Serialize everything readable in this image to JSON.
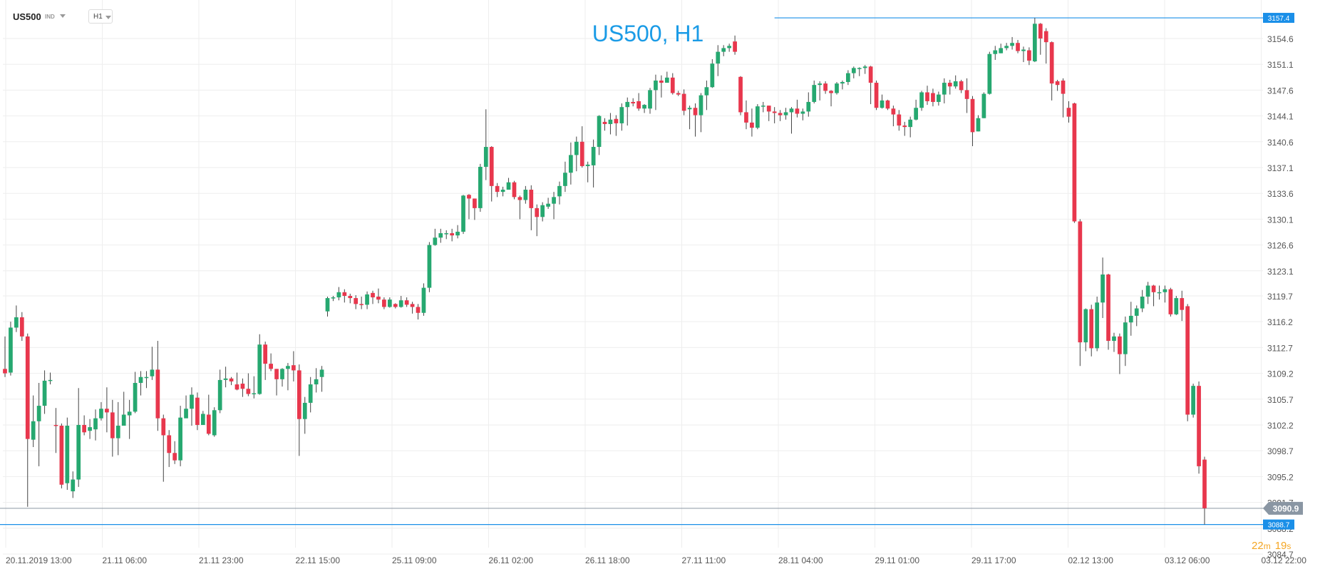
{
  "toolbar": {
    "symbol": "US500",
    "asset_class": "IND",
    "timeframe": "H1"
  },
  "chart_data": {
    "type": "candlestick",
    "title": "US500, H1",
    "y_ticks": [
      "3154.6",
      "3151.1",
      "3147.6",
      "3144.1",
      "3140.6",
      "3137.1",
      "3133.6",
      "3130.1",
      "3126.6",
      "3123.1",
      "3119.7",
      "3116.2",
      "3112.7",
      "3109.2",
      "3105.7",
      "3102.2",
      "3098.7",
      "3095.2",
      "3091.7",
      "3088.2",
      "3084.7"
    ],
    "y_tick_values": [
      3154.6,
      3151.1,
      3147.6,
      3144.1,
      3140.6,
      3137.1,
      3133.6,
      3130.1,
      3126.6,
      3123.1,
      3119.7,
      3116.2,
      3112.7,
      3109.2,
      3105.7,
      3102.2,
      3098.7,
      3095.2,
      3091.7,
      3088.2,
      3084.7
    ],
    "x_ticks": [
      "20.11.2019   13:00",
      "21.11  06:00",
      "21.11  23:00",
      "22.11  15:00",
      "25.11  09:00",
      "26.11  02:00",
      "26.11  18:00",
      "27.11  11:00",
      "28.11  04:00",
      "29.11  01:00",
      "29.11  17:00",
      "02.12  13:00",
      "03.12  06:00",
      "03.12  22:00"
    ],
    "high_marker": {
      "label": "3157.4",
      "value": 3157.4
    },
    "low_marker": {
      "label": "3088.7",
      "value": 3088.7
    },
    "current_price": {
      "label": "3090.9",
      "value": 3090.9
    },
    "countdown": {
      "minutes": "22",
      "m_unit": "m",
      "seconds": "19",
      "s_unit": "s"
    },
    "colors": {
      "up": "#26a870",
      "down": "#e8374d",
      "title": "#1a9be6",
      "marker": "#1a8fe8",
      "current_price": "#8a96a3",
      "countdown": "#f5a623",
      "grid": "#eeeeee",
      "axis_text": "#555555"
    },
    "candles": [
      [
        3109.8,
        3109.2,
        3114.2,
        3108.7
      ],
      [
        3109.3,
        3115.4,
        3116.2,
        3108.9
      ],
      [
        3115.4,
        3116.8,
        3118.4,
        3114.8
      ],
      [
        3116.8,
        3114.2,
        3117.5,
        3113.6
      ],
      [
        3114.2,
        3100.3,
        3114.6,
        3091.1
      ],
      [
        3100.2,
        3102.7,
        3106.2,
        3099.2
      ],
      [
        3102.7,
        3104.8,
        3107.9,
        3096.6
      ],
      [
        3104.8,
        3108.2,
        3109.6,
        3103.7
      ],
      [
        3108.2,
        3108.3,
        3109.3,
        3107.7
      ],
      [
        3102.2,
        3102.1,
        3104.5,
        3098.4
      ],
      [
        3102.1,
        3094.1,
        3102.4,
        3093.6
      ],
      [
        3094.3,
        3102.1,
        3103.2,
        3093.4
      ],
      [
        3093.2,
        3094.8,
        3095.9,
        3092.3
      ],
      [
        3094.8,
        3102.2,
        3107.2,
        3093.8
      ],
      [
        3102.2,
        3101.2,
        3103.5,
        3100.8
      ],
      [
        3101.4,
        3101.9,
        3103.0,
        3100.3
      ],
      [
        3101.6,
        3103.1,
        3104.3,
        3100.1
      ],
      [
        3103.1,
        3104.4,
        3105.3,
        3102.8
      ],
      [
        3104.4,
        3103.9,
        3107.3,
        3101.2
      ],
      [
        3103.9,
        3100.4,
        3105.6,
        3097.9
      ],
      [
        3100.4,
        3102.1,
        3105.3,
        3098.1
      ],
      [
        3102.1,
        3103.6,
        3106.7,
        3102.1
      ],
      [
        3103.5,
        3104.0,
        3105.6,
        3100.3
      ],
      [
        3104.0,
        3107.9,
        3109.4,
        3103.8
      ],
      [
        3107.9,
        3108.7,
        3109.5,
        3106.2
      ],
      [
        3108.7,
        3108.7,
        3109.5,
        3107.2
      ],
      [
        3108.8,
        3109.7,
        3112.8,
        3108.3
      ],
      [
        3109.7,
        3103.1,
        3113.6,
        3101.4
      ],
      [
        3103.1,
        3100.8,
        3103.6,
        3094.5
      ],
      [
        3100.8,
        3098.4,
        3101.5,
        3096.5
      ],
      [
        3098.4,
        3097.4,
        3100.0,
        3096.9
      ],
      [
        3097.4,
        3103.2,
        3104.8,
        3096.6
      ],
      [
        3103.1,
        3104.4,
        3106.2,
        3103.6
      ],
      [
        3104.4,
        3106.3,
        3107.3,
        3102.1
      ],
      [
        3105.9,
        3102.2,
        3106.6,
        3101.5
      ],
      [
        3102.2,
        3103.7,
        3104.1,
        3102.9
      ],
      [
        3103.6,
        3101.0,
        3106.3,
        3100.8
      ],
      [
        3100.8,
        3104.2,
        3104.6,
        3100.6
      ],
      [
        3104.2,
        3108.3,
        3109.7,
        3103.8
      ],
      [
        3108.3,
        3108.5,
        3110.1,
        3107.3
      ],
      [
        3108.5,
        3108.1,
        3108.7,
        3107.6
      ],
      [
        3107.7,
        3107.0,
        3109.3,
        3106.9
      ],
      [
        3107.8,
        3107.1,
        3108.5,
        3106.0
      ],
      [
        3107.1,
        3106.4,
        3109.2,
        3106.1
      ],
      [
        3106.4,
        3106.5,
        3108.8,
        3105.8
      ],
      [
        3106.4,
        3113.1,
        3114.5,
        3106.3
      ],
      [
        3113.1,
        3110.5,
        3113.5,
        3108.3
      ],
      [
        3110.5,
        3109.8,
        3111.9,
        3109.5
      ],
      [
        3109.8,
        3108.4,
        3109.8,
        3106.2
      ],
      [
        3108.4,
        3109.8,
        3109.9,
        3107.4
      ],
      [
        3109.8,
        3110.2,
        3110.6,
        3106.9
      ],
      [
        3110.3,
        3109.6,
        3112.2,
        3108.1
      ],
      [
        3109.6,
        3103.0,
        3110.4,
        3098.0
      ],
      [
        3103.0,
        3105.2,
        3106.0,
        3101.0
      ],
      [
        3105.2,
        3107.7,
        3108.7,
        3103.9
      ],
      [
        3107.7,
        3108.4,
        3109.9,
        3106.6
      ],
      [
        3108.7,
        3109.7,
        3110.2,
        3106.7
      ],
      [
        3117.6,
        3119.4,
        3119.6,
        3116.9
      ],
      [
        3119.4,
        3119.5,
        3119.7,
        3119.0
      ],
      [
        3119.5,
        3120.2,
        3120.9,
        3119.1
      ],
      [
        3120.2,
        3119.7,
        3120.6,
        3118.8
      ],
      [
        3119.7,
        3119.4,
        3120.0,
        3118.7
      ],
      [
        3119.4,
        3118.6,
        3119.8,
        3117.9
      ],
      [
        3118.6,
        3118.5,
        3119.6,
        3117.9
      ],
      [
        3118.5,
        3119.9,
        3120.3,
        3117.9
      ],
      [
        3120.1,
        3119.5,
        3120.4,
        3118.6
      ],
      [
        3119.6,
        3119.2,
        3120.7,
        3118.7
      ],
      [
        3119.2,
        3118.2,
        3119.5,
        3117.9
      ],
      [
        3118.2,
        3119.2,
        3119.5,
        3118.1
      ],
      [
        3118.6,
        3118.2,
        3118.7,
        3118.0
      ],
      [
        3118.2,
        3119.1,
        3119.7,
        3118.1
      ],
      [
        3119.1,
        3118.5,
        3119.5,
        3118.2
      ],
      [
        3118.6,
        3118.2,
        3118.9,
        3117.3
      ],
      [
        3118.2,
        3117.4,
        3118.6,
        3116.5
      ],
      [
        3117.4,
        3120.8,
        3121.4,
        3117.0
      ],
      [
        3120.8,
        3126.6,
        3127.0,
        3120.2
      ],
      [
        3126.6,
        3127.6,
        3128.8,
        3126.5
      ],
      [
        3127.6,
        3128.2,
        3128.8,
        3126.9
      ],
      [
        3128.2,
        3128.2,
        3128.6,
        3127.4
      ],
      [
        3128.2,
        3127.9,
        3128.8,
        3127.1
      ],
      [
        3127.9,
        3128.4,
        3129.3,
        3127.5
      ],
      [
        3128.4,
        3133.3,
        3133.4,
        3128.1
      ],
      [
        3133.4,
        3132.9,
        3133.5,
        3130.1
      ],
      [
        3132.9,
        3131.6,
        3132.9,
        3130.0
      ],
      [
        3131.6,
        3137.2,
        3137.6,
        3131.1
      ],
      [
        3137.2,
        3139.9,
        3145.0,
        3135.4
      ],
      [
        3139.9,
        3134.6,
        3140.0,
        3132.5
      ],
      [
        3134.6,
        3133.8,
        3135.0,
        3133.1
      ],
      [
        3133.8,
        3134.1,
        3134.5,
        3133.2
      ],
      [
        3134.1,
        3135.1,
        3135.7,
        3134.1
      ],
      [
        3135.1,
        3133.1,
        3135.3,
        3132.8
      ],
      [
        3133.1,
        3132.7,
        3133.3,
        3130.1
      ],
      [
        3132.7,
        3134.1,
        3134.6,
        3132.2
      ],
      [
        3134.1,
        3131.6,
        3134.7,
        3128.6
      ],
      [
        3131.6,
        3130.4,
        3132.1,
        3127.8
      ],
      [
        3130.4,
        3132.0,
        3132.4,
        3129.8
      ],
      [
        3131.8,
        3132.2,
        3133.0,
        3131.5
      ],
      [
        3132.2,
        3133.1,
        3133.8,
        3130.1
      ],
      [
        3133.2,
        3134.6,
        3135.2,
        3132.1
      ],
      [
        3134.6,
        3136.4,
        3137.9,
        3133.8
      ],
      [
        3136.4,
        3138.8,
        3140.5,
        3134.8
      ],
      [
        3138.8,
        3140.6,
        3141.3,
        3136.6
      ],
      [
        3140.6,
        3137.3,
        3142.7,
        3137.1
      ],
      [
        3137.3,
        3137.5,
        3137.9,
        3135.1
      ],
      [
        3137.4,
        3139.9,
        3140.9,
        3134.4
      ],
      [
        3139.9,
        3144.1,
        3144.2,
        3138.8
      ],
      [
        3143.3,
        3143.0,
        3143.8,
        3142.1
      ],
      [
        3143.0,
        3143.6,
        3144.5,
        3141.6
      ],
      [
        3143.7,
        3143.1,
        3144.2,
        3141.4
      ],
      [
        3143.1,
        3145.3,
        3145.8,
        3142.1
      ],
      [
        3145.3,
        3146.0,
        3146.6,
        3142.8
      ],
      [
        3146.0,
        3145.8,
        3146.5,
        3145.4
      ],
      [
        3146.1,
        3145.1,
        3147.2,
        3144.8
      ],
      [
        3145.1,
        3145.6,
        3145.7,
        3144.5
      ],
      [
        3145.1,
        3147.6,
        3147.9,
        3144.4
      ],
      [
        3147.6,
        3148.9,
        3149.7,
        3144.9
      ],
      [
        3148.9,
        3148.6,
        3149.6,
        3146.6
      ],
      [
        3148.6,
        3149.3,
        3150.1,
        3148.6
      ],
      [
        3149.3,
        3147.2,
        3149.9,
        3147.0
      ],
      [
        3147.2,
        3147.0,
        3147.5,
        3146.8
      ],
      [
        3147.1,
        3144.8,
        3147.7,
        3144.2
      ],
      [
        3145.0,
        3145.2,
        3145.5,
        3142.3
      ],
      [
        3145.2,
        3144.2,
        3145.8,
        3141.3
      ],
      [
        3144.2,
        3146.9,
        3147.2,
        3141.9
      ],
      [
        3146.9,
        3148.0,
        3148.9,
        3144.9
      ],
      [
        3148.0,
        3151.2,
        3151.8,
        3147.9
      ],
      [
        3151.2,
        3152.8,
        3153.7,
        3149.5
      ],
      [
        3152.8,
        3153.3,
        3153.7,
        3152.2
      ],
      [
        3153.3,
        3153.6,
        3153.9,
        3152.8
      ],
      [
        3154.2,
        3152.8,
        3155.0,
        3152.4
      ],
      [
        3149.4,
        3144.6,
        3149.5,
        3144.2
      ],
      [
        3144.6,
        3143.2,
        3146.2,
        3142.3
      ],
      [
        3143.2,
        3142.5,
        3145.1,
        3141.3
      ],
      [
        3142.5,
        3145.4,
        3145.7,
        3142.3
      ],
      [
        3145.4,
        3145.5,
        3146.0,
        3144.6
      ],
      [
        3145.5,
        3144.7,
        3145.5,
        3143.4
      ],
      [
        3144.7,
        3144.5,
        3145.3,
        3143.1
      ],
      [
        3144.5,
        3144.2,
        3144.9,
        3143.4
      ],
      [
        3144.2,
        3144.6,
        3145.2,
        3143.6
      ],
      [
        3144.6,
        3145.1,
        3145.3,
        3141.7
      ],
      [
        3145.1,
        3144.4,
        3146.3,
        3143.9
      ],
      [
        3144.4,
        3144.7,
        3145.1,
        3143.5
      ],
      [
        3144.7,
        3146.0,
        3147.3,
        3144.0
      ],
      [
        3146.0,
        3148.3,
        3148.9,
        3145.8
      ],
      [
        3148.3,
        3148.5,
        3148.8,
        3146.2
      ],
      [
        3148.5,
        3147.5,
        3148.8,
        3147.1
      ],
      [
        3147.5,
        3147.2,
        3147.6,
        3145.4
      ],
      [
        3147.2,
        3148.5,
        3148.7,
        3147.0
      ],
      [
        3148.5,
        3148.7,
        3148.9,
        3147.7
      ],
      [
        3148.7,
        3149.9,
        3150.3,
        3148.3
      ],
      [
        3149.9,
        3150.6,
        3150.8,
        3149.2
      ],
      [
        3150.6,
        3150.6,
        3150.7,
        3149.5
      ],
      [
        3150.6,
        3150.8,
        3151.0,
        3149.8
      ],
      [
        3150.8,
        3148.6,
        3150.9,
        3145.7
      ],
      [
        3148.6,
        3145.2,
        3148.9,
        3144.9
      ],
      [
        3145.2,
        3146.2,
        3147.0,
        3145.1
      ],
      [
        3146.2,
        3145.1,
        3146.3,
        3144.9
      ],
      [
        3145.1,
        3144.3,
        3145.5,
        3142.7
      ],
      [
        3144.3,
        3142.8,
        3144.9,
        3142.1
      ],
      [
        3142.8,
        3142.6,
        3143.3,
        3141.4
      ],
      [
        3142.6,
        3143.6,
        3144.0,
        3141.2
      ],
      [
        3143.6,
        3145.2,
        3146.3,
        3143.5
      ],
      [
        3145.2,
        3147.3,
        3147.5,
        3144.8
      ],
      [
        3147.3,
        3146.1,
        3148.2,
        3145.6
      ],
      [
        3147.2,
        3146.0,
        3147.8,
        3145.4
      ],
      [
        3146.0,
        3147.0,
        3147.4,
        3145.5
      ],
      [
        3147.0,
        3148.6,
        3149.2,
        3145.8
      ],
      [
        3148.6,
        3148.1,
        3149.0,
        3147.0
      ],
      [
        3148.1,
        3148.8,
        3149.6,
        3147.8
      ],
      [
        3148.8,
        3147.6,
        3149.0,
        3147.2
      ],
      [
        3147.6,
        3146.4,
        3149.2,
        3144.5
      ],
      [
        3146.4,
        3141.9,
        3146.8,
        3140.0
      ],
      [
        3142.0,
        3143.8,
        3144.2,
        3142.0
      ],
      [
        3143.8,
        3147.1,
        3147.3,
        3143.8
      ],
      [
        3147.1,
        3152.5,
        3152.8,
        3147.0
      ],
      [
        3152.5,
        3153.0,
        3153.6,
        3151.7
      ],
      [
        3152.6,
        3153.3,
        3153.9,
        3152.6
      ],
      [
        3153.3,
        3153.6,
        3154.0,
        3153.0
      ],
      [
        3153.6,
        3154.0,
        3154.8,
        3153.1
      ],
      [
        3154.0,
        3152.9,
        3154.4,
        3152.6
      ],
      [
        3152.9,
        3153.1,
        3153.5,
        3151.4
      ],
      [
        3153.0,
        3151.6,
        3153.4,
        3151.0
      ],
      [
        3151.5,
        3156.6,
        3157.4,
        3151.4
      ],
      [
        3156.6,
        3154.6,
        3156.7,
        3152.4
      ],
      [
        3155.6,
        3154.1,
        3156.0,
        3151.2
      ],
      [
        3154.1,
        3148.5,
        3154.2,
        3146.2
      ],
      [
        3148.8,
        3148.3,
        3149.0,
        3147.5
      ],
      [
        3148.9,
        3147.1,
        3149.2,
        3143.9
      ],
      [
        3145.2,
        3144.0,
        3146.1,
        3143.2
      ],
      [
        3145.8,
        3129.8,
        3145.9,
        3129.6
      ],
      [
        3129.8,
        3113.4,
        3130.1,
        3110.2
      ],
      [
        3113.4,
        3117.9,
        3118.0,
        3112.2
      ],
      [
        3117.9,
        3112.6,
        3118.5,
        3111.5
      ],
      [
        3112.6,
        3118.8,
        3119.6,
        3112.2
      ],
      [
        3118.8,
        3122.6,
        3124.9,
        3116.7
      ],
      [
        3122.6,
        3113.6,
        3122.7,
        3112.4
      ],
      [
        3113.6,
        3114.2,
        3114.7,
        3112.1
      ],
      [
        3114.2,
        3111.8,
        3114.6,
        3109.1
      ],
      [
        3111.8,
        3116.1,
        3116.9,
        3110.2
      ],
      [
        3116.1,
        3117.0,
        3118.9,
        3114.3
      ],
      [
        3117.0,
        3118.0,
        3118.4,
        3115.6
      ],
      [
        3118.0,
        3119.6,
        3120.5,
        3117.5
      ],
      [
        3119.6,
        3121.1,
        3121.6,
        3118.6
      ],
      [
        3121.1,
        3120.2,
        3121.2,
        3118.3
      ],
      [
        3120.2,
        3120.2,
        3121.1,
        3119.2
      ],
      [
        3120.2,
        3120.6,
        3121.1,
        3118.8
      ],
      [
        3120.6,
        3117.2,
        3120.8,
        3116.9
      ],
      [
        3117.2,
        3119.4,
        3119.7,
        3117.1
      ],
      [
        3119.4,
        3117.8,
        3120.4,
        3116.3
      ],
      [
        3118.3,
        3103.6,
        3118.6,
        3102.7
      ],
      [
        3103.6,
        3107.5,
        3107.8,
        3103.2
      ],
      [
        3107.5,
        3096.6,
        3108.1,
        3095.6
      ],
      [
        3097.5,
        3090.9,
        3097.9,
        3088.7
      ]
    ]
  }
}
